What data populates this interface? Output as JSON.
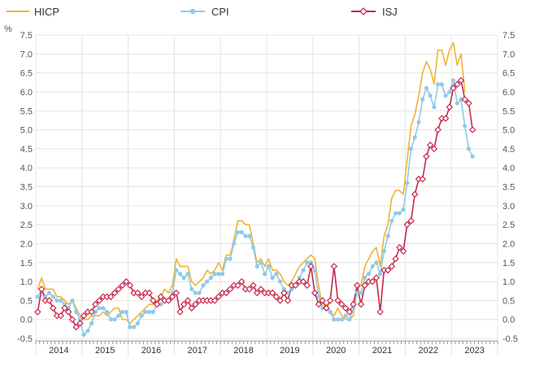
{
  "chart_data": {
    "type": "line",
    "ylabel": "%",
    "ylim": [
      -0.5,
      7.5
    ],
    "y_ticks": [
      "7.5",
      "7.0",
      "6.5",
      "6.0",
      "5.5",
      "5.0",
      "4.5",
      "4.0",
      "3.5",
      "3.0",
      "2.5",
      "2.0",
      "1.5",
      "1.0",
      "0.5",
      "0.0",
      "-0.5"
    ],
    "x_start_year": 2014,
    "year_labels": [
      "2014",
      "2015",
      "2016",
      "2017",
      "2018",
      "2019",
      "2020",
      "2021",
      "2022",
      "2023"
    ],
    "grid": true,
    "legend_position": "top",
    "series": [
      {
        "name": "HICP",
        "color": "#f0b432",
        "marker": "none",
        "values": [
          0.8,
          1.1,
          0.8,
          0.8,
          0.8,
          0.6,
          0.6,
          0.5,
          0.4,
          0.5,
          0.3,
          0.1,
          0.0,
          0.0,
          0.1,
          0.1,
          0.1,
          0.2,
          0.1,
          0.2,
          0.3,
          0.3,
          0.0,
          0.0,
          -0.1,
          0.0,
          0.1,
          0.2,
          0.3,
          0.4,
          0.4,
          0.5,
          0.6,
          0.8,
          0.7,
          0.9,
          1.6,
          1.4,
          1.4,
          1.4,
          1.0,
          0.9,
          1.0,
          1.1,
          1.3,
          1.2,
          1.3,
          1.5,
          1.3,
          1.7,
          1.7,
          2.1,
          2.6,
          2.6,
          2.5,
          2.5,
          2.0,
          1.5,
          1.6,
          1.4,
          1.6,
          1.3,
          1.3,
          1.2,
          1.0,
          0.9,
          1.0,
          1.2,
          1.4,
          1.5,
          1.6,
          1.7,
          1.6,
          0.9,
          0.3,
          0.4,
          0.2,
          0.1,
          0.3,
          0.1,
          0.0,
          0.0,
          0.1,
          0.8,
          0.9,
          1.4,
          1.6,
          1.8,
          1.9,
          1.4,
          2.2,
          2.5,
          3.2,
          3.4,
          3.4,
          3.3,
          4.2,
          5.1,
          5.4,
          5.9,
          6.5,
          6.8,
          6.6,
          6.2,
          7.1,
          7.1,
          6.7,
          7.1,
          7.3,
          6.7,
          7.0,
          6.0
        ]
      },
      {
        "name": "CPI",
        "color": "#8fcae8",
        "marker": "circle",
        "values": [
          0.6,
          0.8,
          0.6,
          0.7,
          0.6,
          0.5,
          0.5,
          0.4,
          0.3,
          0.5,
          0.2,
          0.0,
          -0.4,
          -0.3,
          -0.1,
          0.2,
          0.3,
          0.3,
          0.2,
          0.0,
          0.0,
          0.1,
          0.2,
          0.2,
          -0.2,
          -0.2,
          -0.1,
          0.1,
          0.2,
          0.2,
          0.2,
          0.4,
          0.4,
          0.5,
          0.5,
          0.7,
          1.3,
          1.2,
          1.1,
          1.2,
          0.8,
          0.7,
          0.7,
          0.9,
          1.0,
          1.1,
          1.2,
          1.2,
          1.2,
          1.6,
          1.6,
          2.0,
          2.3,
          2.3,
          2.2,
          2.2,
          1.9,
          1.4,
          1.5,
          1.2,
          1.4,
          1.1,
          1.2,
          1.0,
          0.8,
          0.7,
          0.8,
          0.9,
          1.1,
          1.3,
          1.5,
          1.5,
          1.3,
          0.6,
          0.3,
          0.3,
          0.2,
          0.0,
          0.0,
          0.0,
          0.1,
          0.0,
          0.3,
          0.7,
          0.7,
          1.1,
          1.2,
          1.4,
          1.5,
          1.2,
          1.8,
          2.2,
          2.6,
          2.8,
          2.8,
          2.9,
          3.6,
          4.5,
          4.8,
          5.2,
          5.8,
          6.1,
          5.9,
          5.6,
          6.2,
          6.2,
          5.9,
          6.0,
          6.3,
          5.7,
          5.8,
          5.1,
          4.5,
          4.3
        ]
      },
      {
        "name": "ISJ",
        "color": "#c8284b",
        "marker": "diamond",
        "values": [
          0.2,
          0.8,
          0.5,
          0.5,
          0.3,
          0.1,
          0.1,
          0.3,
          0.2,
          0.0,
          -0.2,
          -0.1,
          0.1,
          0.2,
          0.2,
          0.4,
          0.5,
          0.6,
          0.6,
          0.6,
          0.7,
          0.8,
          0.9,
          1.0,
          0.9,
          0.7,
          0.7,
          0.6,
          0.7,
          0.7,
          0.5,
          0.4,
          0.6,
          0.5,
          0.5,
          0.6,
          0.7,
          0.2,
          0.4,
          0.5,
          0.3,
          0.4,
          0.5,
          0.5,
          0.5,
          0.5,
          0.5,
          0.6,
          0.7,
          0.7,
          0.8,
          0.9,
          0.9,
          1.0,
          0.8,
          0.8,
          0.9,
          0.7,
          0.8,
          0.7,
          0.7,
          0.7,
          0.6,
          0.5,
          0.7,
          0.5,
          0.9,
          0.9,
          1.0,
          1.0,
          0.9,
          1.4,
          0.7,
          0.4,
          0.5,
          0.3,
          0.5,
          1.4,
          0.5,
          0.4,
          0.3,
          0.2,
          0.4,
          0.9,
          0.4,
          0.9,
          1.0,
          1.0,
          1.1,
          0.2,
          1.3,
          1.3,
          1.4,
          1.6,
          1.9,
          1.8,
          2.5,
          2.6,
          3.3,
          3.7,
          3.7,
          4.3,
          4.6,
          4.5,
          5.0,
          5.3,
          5.3,
          5.6,
          6.1,
          6.2,
          6.3,
          5.8,
          5.7,
          5.0
        ]
      }
    ]
  }
}
